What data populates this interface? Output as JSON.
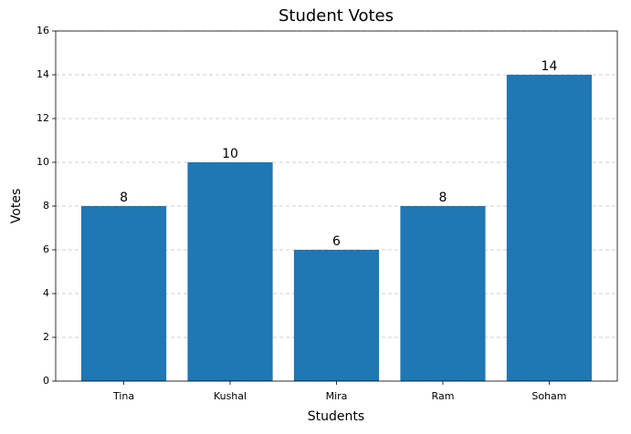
{
  "chart_data": {
    "type": "bar",
    "title": "Student Votes",
    "x_label": "Students",
    "y_label": "Votes",
    "categories": [
      "Tina",
      "Kushal",
      "Mira",
      "Ram",
      "Soham"
    ],
    "values": [
      8,
      10,
      6,
      8,
      14
    ],
    "color": "#1f77b4",
    "ylim": [
      0,
      16
    ],
    "yticks": [
      0,
      2,
      4,
      6,
      8,
      10,
      12,
      14,
      16
    ],
    "grid": true
  }
}
